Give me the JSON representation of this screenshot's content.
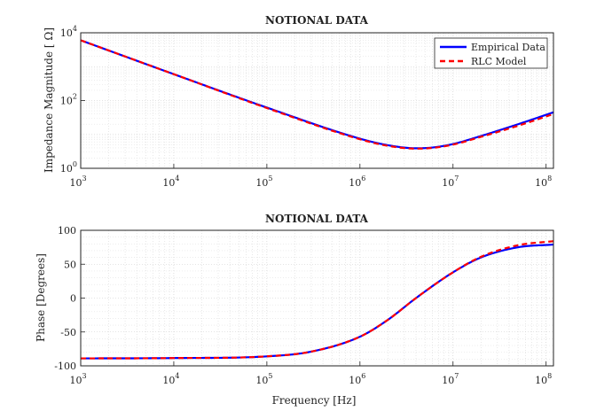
{
  "chart_data": [
    {
      "type": "line",
      "title": "NOTIONAL DATA",
      "xlabel": "",
      "ylabel": "Impedance Magnitude [ Ω]",
      "xscale": "log",
      "yscale": "log",
      "xlim": [
        1000,
        120000000
      ],
      "ylim": [
        1,
        10000
      ],
      "xticks": [
        1000,
        10000,
        100000,
        1000000,
        10000000,
        100000000
      ],
      "yticks": [
        1,
        100,
        10000
      ],
      "grid": true,
      "legend": "top-right",
      "series": [
        {
          "name": "Empirical Data",
          "color": "#0000ff",
          "style": "solid",
          "x": [
            1000,
            10000,
            100000,
            1000000,
            2000000,
            4000000,
            6000000,
            10000000,
            20000000,
            50000000,
            120000000
          ],
          "y": [
            6000,
            600,
            62,
            7.5,
            4.8,
            3.9,
            4.1,
            5.2,
            9,
            20,
            45
          ]
        },
        {
          "name": "RLC Model",
          "color": "#ff0000",
          "style": "dashed",
          "x": [
            1000,
            10000,
            100000,
            1000000,
            2000000,
            4000000,
            6000000,
            10000000,
            20000000,
            50000000,
            120000000
          ],
          "y": [
            6000,
            600,
            60,
            7.2,
            4.6,
            3.8,
            4.0,
            5.0,
            8.5,
            18,
            40
          ]
        }
      ]
    },
    {
      "type": "line",
      "title": "NOTIONAL DATA",
      "xlabel": "Frequency [Hz]",
      "ylabel": "Phase [Degrees]",
      "xscale": "log",
      "xlim": [
        1000,
        120000000
      ],
      "ylim": [
        -100,
        100
      ],
      "xticks": [
        1000,
        10000,
        100000,
        1000000,
        10000000,
        100000000
      ],
      "yticks": [
        -100,
        -50,
        0,
        50,
        100
      ],
      "grid": true,
      "series": [
        {
          "name": "Empirical Data",
          "color": "#0000ff",
          "style": "solid",
          "x": [
            1000,
            10000,
            100000,
            300000,
            1000000,
            2000000,
            4000000,
            10000000,
            20000000,
            50000000,
            120000000
          ],
          "y": [
            -89,
            -88.5,
            -86,
            -79,
            -57,
            -32,
            0,
            38,
            60,
            75,
            79
          ]
        },
        {
          "name": "RLC Model",
          "color": "#ff0000",
          "style": "dashed",
          "x": [
            1000,
            10000,
            100000,
            300000,
            1000000,
            2000000,
            4000000,
            10000000,
            20000000,
            50000000,
            120000000
          ],
          "y": [
            -89,
            -88.5,
            -86,
            -79,
            -57,
            -32,
            0,
            38,
            61,
            78,
            84
          ]
        }
      ]
    }
  ]
}
